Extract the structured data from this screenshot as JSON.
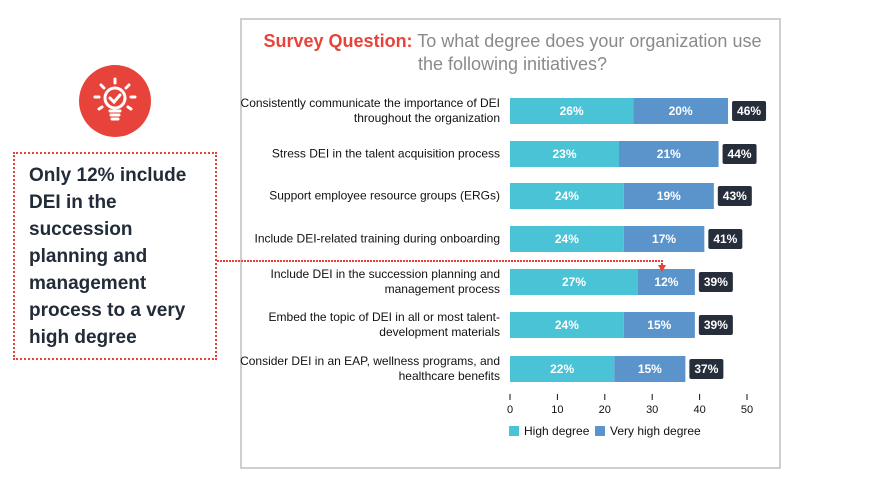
{
  "title": {
    "prefix": "Survey Question:",
    "text": " To what degree does your organization use the following initiatives?"
  },
  "callout": {
    "text": "Only 12% include DEI in the succession planning and management process to a very high degree",
    "icon": "lightbulb-check-icon"
  },
  "colors": {
    "high": "#4bc3d6",
    "very_high": "#5b93cb",
    "total_badge": "#262e3b",
    "accent": "#e8433a"
  },
  "chart_data": {
    "type": "bar",
    "orientation": "horizontal-stacked",
    "categories": [
      "Consistently communicate the importance of DEI throughout the organization",
      "Stress DEI in the talent acquisition process",
      "Support employee resource groups (ERGs)",
      "Include DEI-related training during onboarding",
      "Include DEI in the succession planning and management process",
      "Embed the topic of DEI in all or most talent-development materials",
      "Consider DEI in an EAP, wellness programs, and healthcare benefits"
    ],
    "series": [
      {
        "name": "High degree",
        "values": [
          26,
          23,
          24,
          24,
          27,
          24,
          22
        ]
      },
      {
        "name": "Very high degree",
        "values": [
          20,
          21,
          19,
          17,
          12,
          15,
          15
        ]
      }
    ],
    "totals": [
      46,
      44,
      43,
      41,
      39,
      39,
      37
    ],
    "xlim": [
      0,
      50
    ],
    "xticks": [
      0,
      10,
      20,
      30,
      40,
      50
    ],
    "legend": "bottom",
    "grid": false
  }
}
